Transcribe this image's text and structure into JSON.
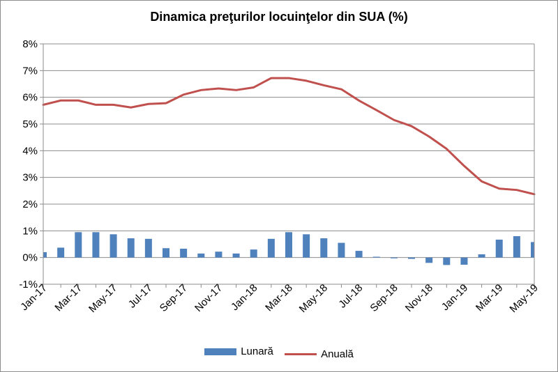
{
  "chart_data": {
    "type": "bar",
    "title": "Dinamica preţurilor locuinţelor din SUA (%)",
    "categories": [
      "Jan-17",
      "Feb-17",
      "Mar-17",
      "Apr-17",
      "May-17",
      "Jun-17",
      "Jul-17",
      "Aug-17",
      "Sep-17",
      "Oct-17",
      "Nov-17",
      "Dec-17",
      "Jan-18",
      "Feb-18",
      "Mar-18",
      "Apr-18",
      "May-18",
      "Jun-18",
      "Jul-18",
      "Aug-18",
      "Sep-18",
      "Oct-18",
      "Nov-18",
      "Dec-18",
      "Jan-19",
      "Feb-19",
      "Mar-19",
      "Apr-19",
      "May-19"
    ],
    "x_tick_labels": [
      "Jan-17",
      "Mar-17",
      "May-17",
      "Jul-17",
      "Sep-17",
      "Nov-17",
      "Jan-18",
      "Mar-18",
      "May-18",
      "Jul-18",
      "Sep-18",
      "Nov-18",
      "Jan-19",
      "Mar-19",
      "May-19"
    ],
    "y_tick_labels": [
      "-1%",
      "0%",
      "1%",
      "2%",
      "3%",
      "4%",
      "5%",
      "6%",
      "7%",
      "8%"
    ],
    "ylim": [
      -1,
      8
    ],
    "grid": true,
    "legend_position": "bottom",
    "series": [
      {
        "name": "Lunară",
        "kind": "bar",
        "color": "#4f81bd",
        "values": [
          0.2,
          0.37,
          0.95,
          0.95,
          0.87,
          0.72,
          0.7,
          0.35,
          0.33,
          0.15,
          0.22,
          0.15,
          0.3,
          0.7,
          0.95,
          0.87,
          0.72,
          0.55,
          0.25,
          0.03,
          -0.03,
          -0.05,
          -0.2,
          -0.28,
          -0.27,
          0.12,
          0.67,
          0.8,
          0.58
        ]
      },
      {
        "name": "Anuală",
        "kind": "line",
        "color": "#c0504d",
        "values": [
          5.72,
          5.88,
          5.88,
          5.72,
          5.72,
          5.62,
          5.75,
          5.78,
          6.1,
          6.27,
          6.33,
          6.27,
          6.37,
          6.72,
          6.72,
          6.62,
          6.45,
          6.3,
          5.88,
          5.52,
          5.15,
          4.92,
          4.53,
          4.07,
          3.43,
          2.85,
          2.58,
          2.53,
          2.37
        ]
      }
    ]
  }
}
